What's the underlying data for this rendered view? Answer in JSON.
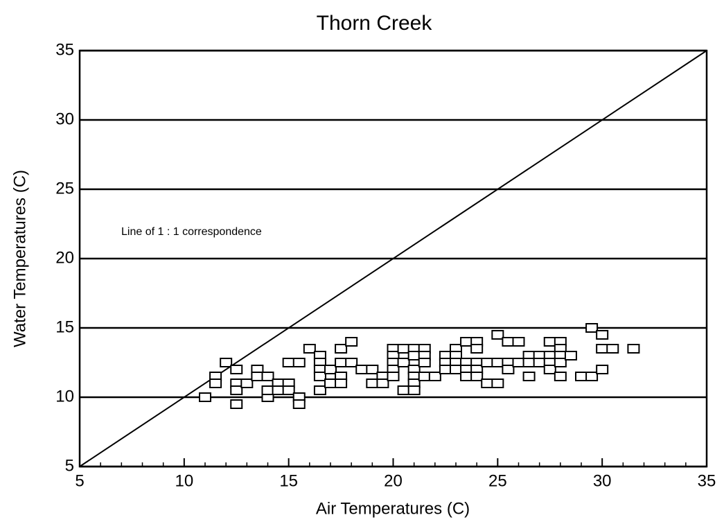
{
  "chart_data": {
    "type": "scatter",
    "title": "Thorn Creek",
    "x_label": "Air Temperatures (C)",
    "y_label": "Water Temperatures (C)",
    "annotation": "Line of 1 : 1 correspondence",
    "xlim": [
      5,
      35
    ],
    "ylim": [
      5,
      35
    ],
    "xticks": [
      5,
      10,
      15,
      20,
      25,
      30,
      35
    ],
    "yticks": [
      5,
      10,
      15,
      20,
      25,
      30,
      35
    ],
    "xminorticks": [
      6,
      7,
      8,
      9,
      11,
      12,
      13,
      14,
      16,
      17,
      18,
      19,
      21,
      22,
      23,
      24,
      26,
      27,
      28,
      29,
      31,
      32,
      33,
      34
    ],
    "grid": true,
    "color": "#000000",
    "x": [
      11,
      11.5,
      11.5,
      12,
      12.5,
      12.5,
      12.5,
      12.5,
      13,
      13.5,
      13.5,
      14,
      14,
      14,
      14.5,
      14.5,
      15,
      15,
      15,
      15.5,
      15.5,
      15.5,
      16,
      16.5,
      16.5,
      16.5,
      16.5,
      16.5,
      17,
      17,
      17.5,
      17.5,
      17.5,
      17.5,
      18,
      18,
      18.5,
      19,
      19,
      19.5,
      19.5,
      20,
      20,
      20,
      20,
      20,
      20.5,
      20.5,
      20.5,
      21,
      21,
      21,
      21,
      21,
      21,
      21.5,
      21.5,
      21.5,
      21.5,
      22,
      22.5,
      22.5,
      22.5,
      23,
      23,
      23,
      23,
      23.5,
      23.5,
      23.5,
      23.5,
      24,
      24,
      24,
      24,
      24,
      24.5,
      24.5,
      25,
      25,
      25,
      25.5,
      25.5,
      25.5,
      26,
      26,
      26.5,
      26.5,
      26.5,
      27,
      27,
      27.5,
      27.5,
      27.5,
      27.5,
      28,
      28,
      28,
      28,
      28,
      28.5,
      29,
      29.5,
      29.5,
      30,
      30,
      30,
      30.5,
      31.5
    ],
    "values": [
      10,
      11.5,
      11,
      12.5,
      12,
      11,
      10.5,
      9.5,
      11,
      12,
      11.5,
      11.5,
      10,
      10.5,
      11,
      10.5,
      12.5,
      11,
      10.5,
      12.5,
      10,
      9.5,
      13.5,
      13,
      12.5,
      12,
      11.5,
      10.5,
      12,
      11,
      13.5,
      12.5,
      11.5,
      11,
      14,
      12.5,
      12,
      12,
      11,
      11.5,
      11,
      13.5,
      13,
      12.5,
      12,
      11.5,
      13.5,
      12.5,
      10.5,
      13.5,
      13,
      12,
      11.5,
      11,
      10.5,
      13.5,
      13,
      12.5,
      11.5,
      11.5,
      13,
      12.5,
      12,
      13.5,
      13,
      12.5,
      12,
      14,
      12.5,
      12,
      11.5,
      14,
      13.5,
      12.5,
      12,
      11.5,
      12.5,
      11,
      14.5,
      12.5,
      11,
      14,
      12.5,
      12,
      14,
      12.5,
      13,
      12.5,
      11.5,
      13,
      12.5,
      14,
      13,
      12.5,
      12,
      14,
      13.5,
      13,
      12.5,
      11.5,
      13,
      11.5,
      15,
      11.5,
      14.5,
      13.5,
      12,
      13.5,
      13.5
    ]
  }
}
